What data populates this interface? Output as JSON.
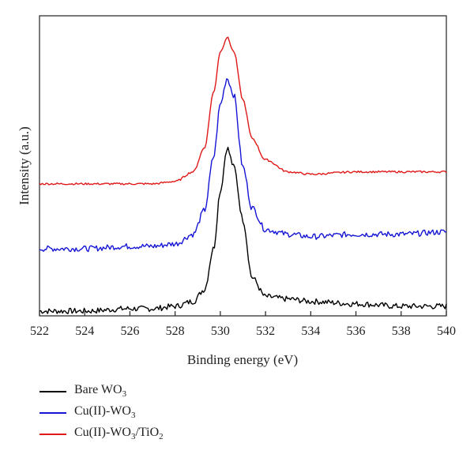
{
  "chart_data": {
    "type": "line",
    "xlabel": "Binding energy (eV)",
    "ylabel": "Intensity (a.u.)",
    "xlim": [
      522,
      540
    ],
    "x_ticks": [
      "522",
      "524",
      "526",
      "528",
      "530",
      "532",
      "534",
      "536",
      "538",
      "540"
    ],
    "y_ticks_shown": false,
    "legend_position": "bottom-left, below plot",
    "series": [
      {
        "name": "Bare WO3",
        "color": "#000000",
        "x": [
          522,
          524,
          526,
          527,
          528,
          528.8,
          529.3,
          529.7,
          530.0,
          530.3,
          530.6,
          531.0,
          531.4,
          532.0,
          533,
          534,
          536,
          538,
          540
        ],
        "y": [
          0.02,
          0.02,
          0.03,
          0.03,
          0.04,
          0.06,
          0.11,
          0.28,
          0.52,
          0.7,
          0.62,
          0.4,
          0.16,
          0.08,
          0.07,
          0.06,
          0.05,
          0.04,
          0.04
        ]
      },
      {
        "name": "Cu(II)-WO3",
        "color": "#1515d6",
        "x": [
          522,
          524,
          526,
          527,
          528,
          528.8,
          529.3,
          529.7,
          530.0,
          530.3,
          530.6,
          531.0,
          531.4,
          532.0,
          533,
          534,
          536,
          538,
          540
        ],
        "y": [
          0.28,
          0.28,
          0.29,
          0.29,
          0.3,
          0.34,
          0.44,
          0.66,
          0.88,
          0.99,
          0.92,
          0.62,
          0.45,
          0.36,
          0.34,
          0.33,
          0.34,
          0.34,
          0.35
        ]
      },
      {
        "name": "Cu(II)-WO3/TiO2",
        "color": "#e01818",
        "x": [
          522,
          524,
          526,
          527,
          528,
          528.8,
          529.3,
          529.7,
          530.0,
          530.3,
          530.6,
          531.0,
          531.4,
          532.0,
          533,
          534,
          536,
          538,
          540
        ],
        "y": [
          0.55,
          0.55,
          0.55,
          0.55,
          0.56,
          0.6,
          0.7,
          0.93,
          1.1,
          1.16,
          1.1,
          0.9,
          0.74,
          0.65,
          0.6,
          0.59,
          0.6,
          0.6,
          0.6
        ]
      }
    ]
  },
  "legend": [
    {
      "base": "Bare WO",
      "sub": "3",
      "rest": "",
      "sub2": "",
      "color": "#000000"
    },
    {
      "base": "Cu(II)-WO",
      "sub": "3",
      "rest": "",
      "sub2": "",
      "color": "#1515d6"
    },
    {
      "base": "Cu(II)-WO",
      "sub": "3",
      "rest": "/TiO",
      "sub2": "2",
      "color": "#e01818"
    }
  ]
}
